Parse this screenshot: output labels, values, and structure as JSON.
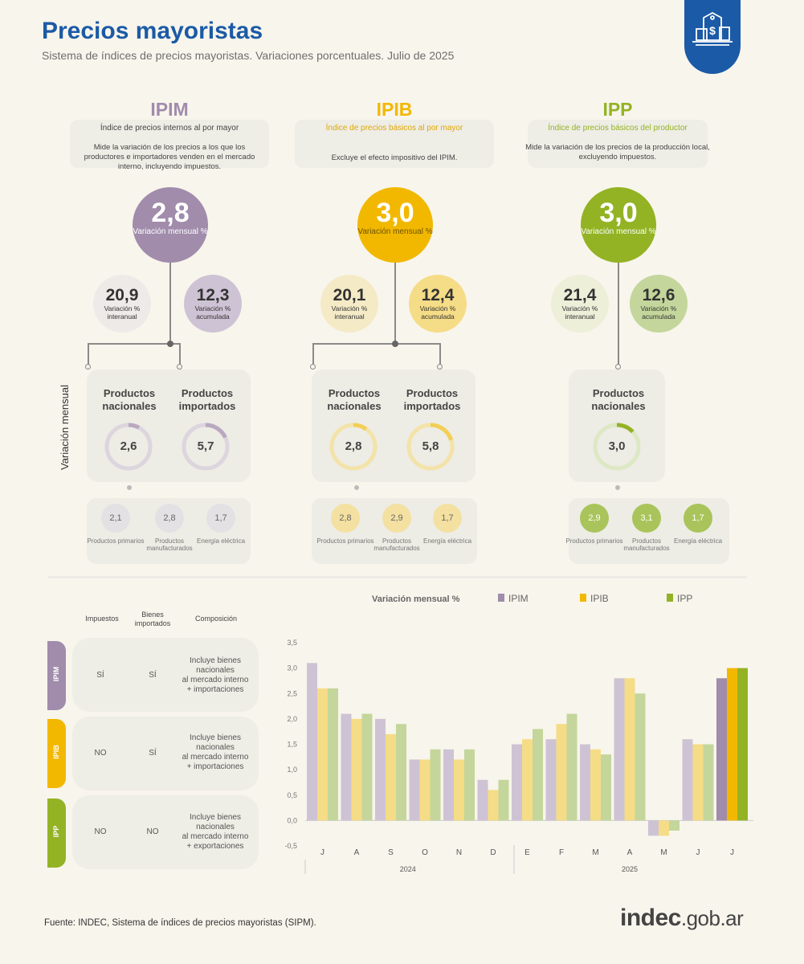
{
  "header": {
    "title": "Precios mayoristas",
    "subtitle": "Sistema de índices de precios mayoristas. Variaciones porcentuales. Julio de 2025"
  },
  "colors": {
    "ipim": "#a18cac",
    "ipim_light": "#cec3d4",
    "ipib": "#f2b800",
    "ipib_light": "#f5dc86",
    "ipp": "#93b324",
    "ipp_light": "#c4d69b",
    "brand": "#1b5aa6"
  },
  "indices": [
    {
      "key": "ipim",
      "name": "IPIM",
      "subtitle": "Índice de precios internos al por mayor",
      "definition": "Mide la variación de los precios a los que los productores e importadores venden en el mercado interno, incluyendo impuestos.",
      "monthly": "2,8",
      "monthly_label": "Variación mensual %",
      "yoy": "20,9",
      "yoy_label": "Variación % interanual",
      "ytd": "12,3",
      "ytd_label": "Variación % acumulada",
      "national_label": "Productos nacionales",
      "national": "2,6",
      "imported_label": "Productos importados",
      "imported": "5,7",
      "primary": "2,1",
      "primary_label": "Productos primarios",
      "manuf": "2,8",
      "manuf_label": "Productos manufacturados",
      "energy": "1,7",
      "energy_label": "Energía eléctrica"
    },
    {
      "key": "ipib",
      "name": "IPIB",
      "subtitle": "Índice de precios básicos al por mayor",
      "definition": "Excluye el efecto impositivo del IPIM.",
      "monthly": "3,0",
      "monthly_label": "Variación mensual %",
      "yoy": "20,1",
      "yoy_label": "Variación % interanual",
      "ytd": "12,4",
      "ytd_label": "Variación % acumulada",
      "national_label": "Productos nacionales",
      "national": "2,8",
      "imported_label": "Productos importados",
      "imported": "5,8",
      "primary": "2,8",
      "primary_label": "Productos primarios",
      "manuf": "2,9",
      "manuf_label": "Productos manufacturados",
      "energy": "1,7",
      "energy_label": "Energía eléctrica"
    },
    {
      "key": "ipp",
      "name": "IPP",
      "subtitle": "Índice de precios básicos del productor",
      "definition": "Mide la variación de los precios de la producción local, excluyendo impuestos.",
      "monthly": "3,0",
      "monthly_label": "Variación mensual %",
      "yoy": "21,4",
      "yoy_label": "Variación % interanual",
      "ytd": "12,6",
      "ytd_label": "Variación % acumulada",
      "national_label": "Productos nacionales",
      "national": "3,0",
      "primary": "2,9",
      "primary_label": "Productos primarios",
      "manuf": "3,1",
      "manuf_label": "Productos manufacturados",
      "energy": "1,7",
      "energy_label": "Energía eléctrica"
    }
  ],
  "side_label": "Variación mensual",
  "table": {
    "headers": [
      "Impuestos",
      "Bienes importados",
      "Composición"
    ],
    "rows": [
      {
        "tab": "IPIM",
        "taxes": "SÍ",
        "imported": "SÍ",
        "composition": [
          "Incluye bienes",
          "nacionales",
          "al mercado interno",
          "+ importaciones"
        ]
      },
      {
        "tab": "IPIB",
        "taxes": "NO",
        "imported": "SÍ",
        "composition": [
          "Incluye bienes",
          "nacionales",
          "al mercado interno",
          "+ importaciones"
        ]
      },
      {
        "tab": "IPP",
        "taxes": "NO",
        "imported": "NO",
        "composition": [
          "Incluye bienes",
          "nacionales",
          "al mercado interno",
          "+ exportaciones"
        ]
      }
    ]
  },
  "chart_data": {
    "type": "bar",
    "title": "Variación mensual %",
    "categories": [
      "J",
      "A",
      "S",
      "O",
      "N",
      "D",
      "E",
      "F",
      "M",
      "A",
      "M",
      "J",
      "J"
    ],
    "year_groups": [
      {
        "label": "2024",
        "months": 6
      },
      {
        "label": "2025",
        "months": 7
      }
    ],
    "series": [
      {
        "name": "IPIM",
        "values": [
          3.1,
          2.1,
          2.0,
          1.2,
          1.4,
          0.8,
          1.5,
          1.6,
          1.5,
          2.8,
          -0.3,
          1.6,
          2.8
        ]
      },
      {
        "name": "IPIB",
        "values": [
          2.6,
          2.0,
          1.7,
          1.2,
          1.2,
          0.6,
          1.6,
          1.9,
          1.4,
          2.8,
          -0.3,
          1.5,
          3.0
        ]
      },
      {
        "name": "IPP",
        "values": [
          2.6,
          2.1,
          1.9,
          1.4,
          1.4,
          0.8,
          1.8,
          2.1,
          1.3,
          2.5,
          -0.2,
          1.5,
          3.0
        ]
      }
    ],
    "ylim": [
      -0.5,
      3.5
    ],
    "yticks": [
      "3,5",
      "3,0",
      "2,5",
      "2,0",
      "1,5",
      "1,0",
      "0,5",
      "0,0",
      "-0,5"
    ],
    "grid": false,
    "legend": "top"
  },
  "footer": {
    "source": "Fuente: INDEC, Sistema de índices de precios mayoristas (SIPM).",
    "logo_main": "indec",
    "logo_domain": ".gob.ar"
  }
}
